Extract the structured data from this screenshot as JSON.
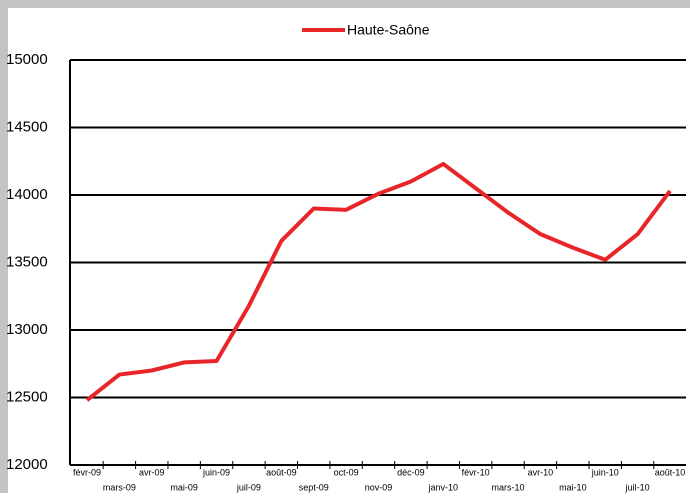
{
  "chart_data": {
    "type": "line",
    "categories": [
      "févr-09",
      "mars-09",
      "avr-09",
      "mai-09",
      "juin-09",
      "juil-09",
      "août-09",
      "sept-09",
      "oct-09",
      "nov-09",
      "déc-09",
      "janv-10",
      "févr-10",
      "mars-10",
      "avr-10",
      "mai-10",
      "juin-10",
      "juil-10",
      "août-10"
    ],
    "series": [
      {
        "name": "Haute-Saône",
        "color": "#e8262a",
        "values": [
          12480,
          12670,
          12700,
          12760,
          12770,
          13180,
          13660,
          13900,
          13890,
          14010,
          14100,
          14230,
          14050,
          13870,
          13710,
          13610,
          13520,
          13710,
          14030
        ]
      }
    ],
    "ylim": [
      12000,
      15000
    ],
    "yticks": [
      12000,
      12500,
      13000,
      13500,
      14000,
      14500,
      15000
    ],
    "grid": true,
    "legend": "top"
  }
}
